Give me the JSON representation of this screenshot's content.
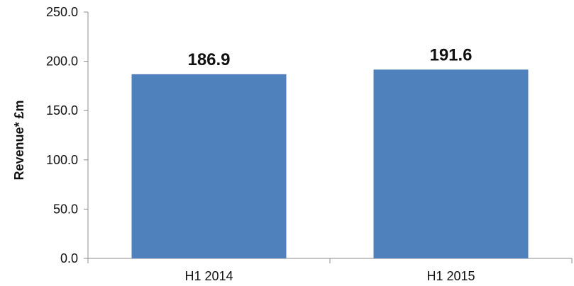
{
  "chart_data": {
    "type": "bar",
    "categories": [
      "H1 2014",
      "H1 2015"
    ],
    "values": [
      186.9,
      191.6
    ],
    "value_labels": [
      "186.9",
      "191.6"
    ],
    "title": "",
    "xlabel": "",
    "ylabel": "Revenue* £m",
    "ylim": [
      0,
      250
    ],
    "y_ticks": [
      0,
      50,
      100,
      150,
      200,
      250
    ],
    "y_tick_labels": [
      "0.0",
      "50.0",
      "100.0",
      "150.0",
      "200.0",
      "250.0"
    ],
    "grid": false,
    "legend": "none",
    "bar_color": "#4f81bd",
    "axis_color": "#8c8c8c"
  }
}
